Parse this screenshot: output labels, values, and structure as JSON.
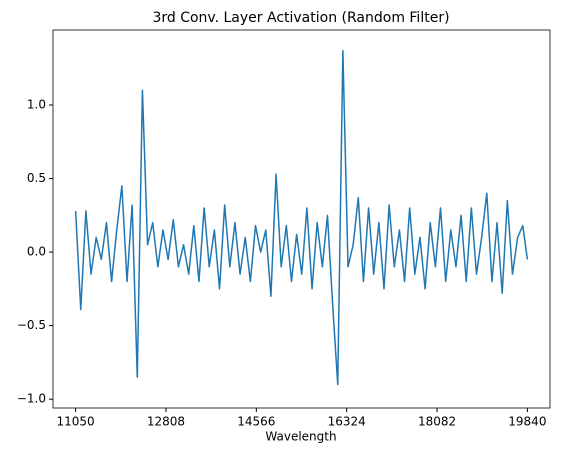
{
  "chart_data": {
    "type": "line",
    "title": "3rd Conv. Layer Activation (Random Filter)",
    "x_label": "Wavelength",
    "x": [
      11050,
      11150,
      11250,
      11350,
      11450,
      11550,
      11650,
      11750,
      11850,
      11950,
      12050,
      12150,
      12250,
      12350,
      12450,
      12550,
      12650,
      12750,
      12850,
      12950,
      13050,
      13150,
      13250,
      13350,
      13450,
      13550,
      13650,
      13750,
      13850,
      13950,
      14050,
      14150,
      14250,
      14350,
      14450,
      14550,
      14650,
      14750,
      14850,
      14950,
      15050,
      15150,
      15250,
      15350,
      15450,
      15550,
      15650,
      15750,
      15850,
      15950,
      16050,
      16150,
      16250,
      16350,
      16450,
      16550,
      16650,
      16750,
      16850,
      16950,
      17050,
      17150,
      17250,
      17350,
      17450,
      17550,
      17650,
      17750,
      17850,
      17950,
      18050,
      18150,
      18250,
      18350,
      18450,
      18550,
      18650,
      18750,
      18850,
      18950,
      19050,
      19150,
      19250,
      19350,
      19450,
      19550,
      19650,
      19750,
      19840
    ],
    "series": [
      {
        "color": "#1f77b4",
        "values": [
          0.28,
          -0.39,
          0.28,
          -0.15,
          0.1,
          -0.05,
          0.2,
          -0.2,
          0.15,
          0.45,
          -0.2,
          0.32,
          -0.85,
          1.1,
          0.05,
          0.2,
          -0.1,
          0.15,
          -0.05,
          0.22,
          -0.1,
          0.05,
          -0.15,
          0.18,
          -0.2,
          0.3,
          -0.1,
          0.15,
          -0.25,
          0.32,
          -0.1,
          0.2,
          -0.15,
          0.1,
          -0.2,
          0.18,
          0.0,
          0.15,
          -0.3,
          0.53,
          -0.1,
          0.18,
          -0.2,
          0.12,
          -0.15,
          0.3,
          -0.25,
          0.2,
          -0.1,
          0.25,
          -0.35,
          -0.9,
          1.37,
          -0.1,
          0.05,
          0.37,
          -0.2,
          0.3,
          -0.15,
          0.2,
          -0.25,
          0.32,
          -0.1,
          0.15,
          -0.2,
          0.3,
          -0.15,
          0.1,
          -0.25,
          0.2,
          -0.1,
          0.3,
          -0.2,
          0.15,
          -0.1,
          0.25,
          -0.2,
          0.3,
          -0.15,
          0.1,
          0.4,
          -0.2,
          0.2,
          -0.28,
          0.35,
          -0.15,
          0.1,
          0.18,
          -0.05
        ]
      }
    ],
    "xlim": [
      10610,
      20280
    ],
    "xticks": [
      11050,
      12808,
      14566,
      16324,
      18082,
      19840
    ],
    "ylim": [
      -1.06,
      1.51
    ],
    "yticks": [
      {
        "value": -1.0,
        "label": "−1.0"
      },
      {
        "value": -0.5,
        "label": "−0.5"
      },
      {
        "value": 0.0,
        "label": "0.0"
      },
      0.5,
      {
        "value": 1.0,
        "label": "1.0"
      }
    ]
  }
}
